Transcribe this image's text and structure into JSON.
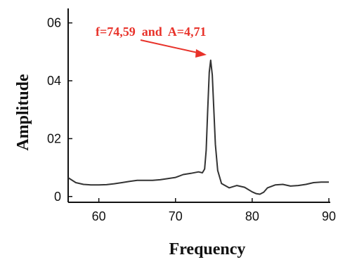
{
  "chart_data": {
    "type": "line",
    "title": "",
    "xlabel": "Frequency",
    "ylabel": "Amplitude",
    "xlim": [
      56,
      90
    ],
    "ylim": [
      -0.2,
      6.5
    ],
    "x_ticks": [
      60,
      70,
      80,
      90
    ],
    "x_tick_labels": [
      "60",
      "70",
      "80",
      "90"
    ],
    "y_ticks": [
      0,
      2,
      4,
      6
    ],
    "y_tick_labels": [
      "0",
      "02",
      "04",
      "06"
    ],
    "grid": false,
    "legend": "none",
    "line_color": "#333333",
    "annotation": {
      "text": "f=74,59  and  A=4,71",
      "x": 74.59,
      "y": 4.71,
      "color": "#e8322a"
    },
    "series": [
      {
        "x": [
          56,
          57,
          58,
          59,
          60,
          61,
          62,
          63,
          64,
          65,
          66,
          67,
          68,
          69,
          70,
          71,
          72,
          73,
          73.5,
          73.8,
          74.0,
          74.2,
          74.4,
          74.59,
          74.8,
          75.0,
          75.2,
          75.5,
          76,
          77,
          78,
          79,
          80,
          80.5,
          81,
          81.5,
          82,
          83,
          84,
          85,
          86,
          87,
          88,
          89,
          90
        ],
        "y": [
          0.65,
          0.48,
          0.42,
          0.4,
          0.4,
          0.41,
          0.44,
          0.48,
          0.52,
          0.56,
          0.56,
          0.56,
          0.58,
          0.62,
          0.66,
          0.76,
          0.8,
          0.85,
          0.82,
          0.95,
          1.6,
          3.0,
          4.3,
          4.71,
          4.2,
          3.0,
          1.8,
          0.9,
          0.45,
          0.3,
          0.38,
          0.32,
          0.16,
          0.1,
          0.08,
          0.15,
          0.3,
          0.4,
          0.42,
          0.36,
          0.38,
          0.42,
          0.48,
          0.5,
          0.5
        ]
      }
    ]
  }
}
